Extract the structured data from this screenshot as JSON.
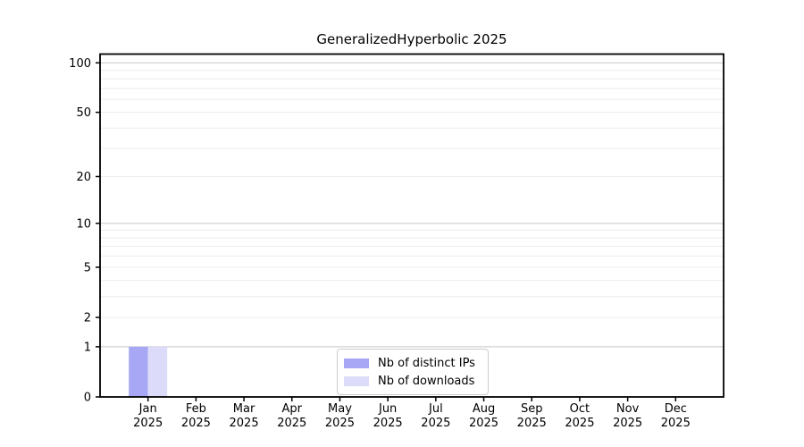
{
  "chart_data": {
    "type": "bar",
    "title": "GeneralizedHyperbolic 2025",
    "categories": [
      "Jan",
      "Feb",
      "Mar",
      "Apr",
      "May",
      "Jun",
      "Jul",
      "Aug",
      "Sep",
      "Oct",
      "Nov",
      "Dec"
    ],
    "x_year_label": "2025",
    "series": [
      {
        "name": "Nb of distinct IPs",
        "color": "#a7a7f6",
        "values": [
          1,
          0,
          0,
          0,
          0,
          0,
          0,
          0,
          0,
          0,
          0,
          0
        ]
      },
      {
        "name": "Nb of downloads",
        "color": "#dcdcfa",
        "values": [
          1,
          0,
          0,
          0,
          0,
          0,
          0,
          0,
          0,
          0,
          0,
          0
        ]
      }
    ],
    "yscale": "log1p",
    "ylim": [
      0,
      113
    ],
    "y_ticks": [
      0,
      1,
      2,
      5,
      10,
      20,
      50,
      100
    ],
    "y_major_gridlines": [
      1,
      10,
      100
    ],
    "y_minor_gridlines": [
      2,
      3,
      4,
      5,
      6,
      7,
      8,
      9,
      20,
      30,
      40,
      50,
      60,
      70,
      80,
      90
    ],
    "grid": true,
    "legend_position": "lower center",
    "bar_group_width_ratio": 0.8
  },
  "colors": {
    "grid_major": "#c6c6c6",
    "grid_minor": "#ececec",
    "axis": "#000000",
    "tick_label": "#000000",
    "legend_border": "#cccccc",
    "background": "#ffffff"
  }
}
